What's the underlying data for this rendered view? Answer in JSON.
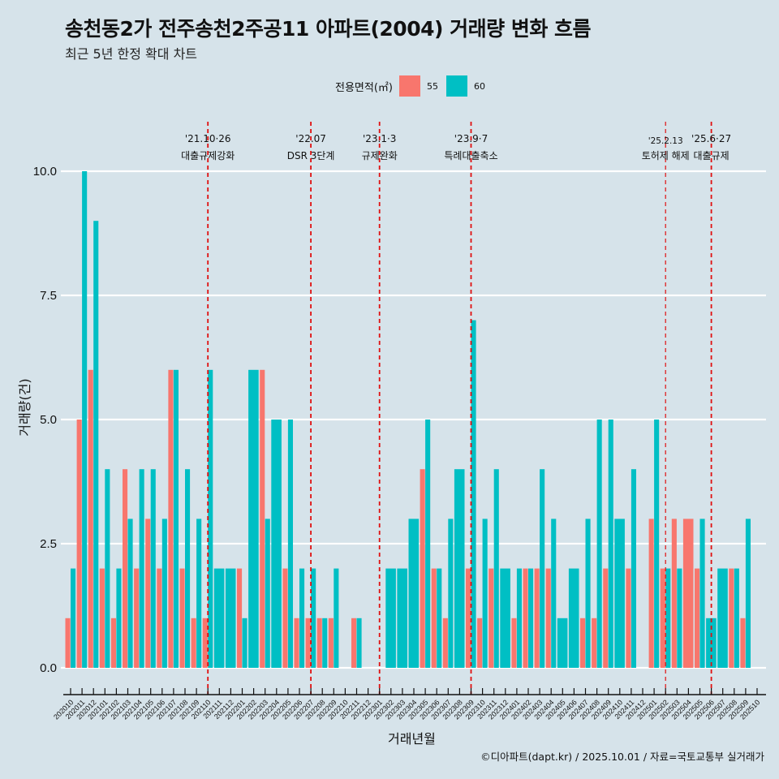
{
  "header": {
    "title": "송천동2가 전주송천2주공11 아파트(2004) 거래량 변화 흐름",
    "subtitle": "최근 5년 한정 확대 차트"
  },
  "legend": {
    "title": "전용면적(㎡)",
    "items": [
      {
        "label": "55",
        "color": "#f8766d"
      },
      {
        "label": "60",
        "color": "#00bfc4"
      }
    ]
  },
  "caption": "©디아파트(dapt.kr) / 2025.10.01 / 자료=국토교통부 실거래가",
  "chart_data": {
    "type": "bar",
    "title": "송천동2가 전주송천2주공11 아파트(2004) 거래량 변화 흐름",
    "subtitle": "최근 5년 한정 확대 차트",
    "xlabel": "거래년월",
    "ylabel": "거래량(건)",
    "ylim": [
      0,
      10
    ],
    "yticks": [
      "0.0",
      "2.5",
      "5.0",
      "7.5",
      "10.0"
    ],
    "grid": true,
    "legend_position": "top",
    "categories": [
      "202010",
      "202011",
      "202012",
      "202101",
      "202102",
      "202103",
      "202104",
      "202105",
      "202106",
      "202107",
      "202108",
      "202109",
      "202110",
      "202111",
      "202112",
      "202201",
      "202202",
      "202203",
      "202204",
      "202205",
      "202206",
      "202207",
      "202208",
      "202209",
      "202210",
      "202211",
      "202212",
      "202301",
      "202302",
      "202303",
      "202304",
      "202305",
      "202306",
      "202307",
      "202308",
      "202309",
      "202310",
      "202311",
      "202312",
      "202401",
      "202402",
      "202403",
      "202404",
      "202405",
      "202406",
      "202407",
      "202408",
      "202409",
      "202410",
      "202411",
      "202412",
      "202501",
      "202502",
      "202503",
      "202504",
      "202505",
      "202506",
      "202507",
      "202508",
      "202509",
      "202510"
    ],
    "series": [
      {
        "name": "55",
        "color": "#f8766d",
        "values": [
          1,
          5,
          6,
          2,
          1,
          4,
          2,
          3,
          2,
          6,
          2,
          1,
          1,
          null,
          null,
          2,
          null,
          6,
          null,
          2,
          1,
          1,
          1,
          1,
          null,
          1,
          null,
          null,
          null,
          null,
          null,
          4,
          2,
          1,
          null,
          2,
          1,
          2,
          null,
          1,
          2,
          2,
          2,
          null,
          null,
          1,
          1,
          2,
          null,
          2,
          null,
          3,
          2,
          3,
          3,
          2,
          null,
          null,
          2,
          1,
          null
        ]
      },
      {
        "name": "60",
        "color": "#00bfc4",
        "values": [
          2,
          10,
          9,
          4,
          2,
          3,
          4,
          4,
          3,
          6,
          4,
          3,
          6,
          2,
          2,
          1,
          6,
          3,
          5,
          5,
          2,
          2,
          1,
          2,
          null,
          1,
          null,
          null,
          2,
          2,
          3,
          5,
          2,
          3,
          4,
          7,
          3,
          4,
          2,
          2,
          2,
          4,
          3,
          1,
          2,
          3,
          5,
          5,
          3,
          4,
          null,
          5,
          2,
          2,
          null,
          3,
          1,
          2,
          2,
          3,
          null
        ]
      }
    ],
    "annotations": [
      {
        "x": "202110",
        "date": "'21.10·26",
        "label": "대출규제강화"
      },
      {
        "x": "202207",
        "date": "'22.07",
        "label": "DSR 3단계"
      },
      {
        "x": "202301",
        "date": "'23.1·3",
        "label": "규제완화"
      },
      {
        "x": "202309",
        "date": "'23.9·7",
        "label": "특례대출축소"
      },
      {
        "x": "202502",
        "date": "'25.2.13",
        "label": "토허제 해제"
      },
      {
        "x": "202506",
        "date": "'25.6·27",
        "label": "대출규제"
      }
    ]
  }
}
